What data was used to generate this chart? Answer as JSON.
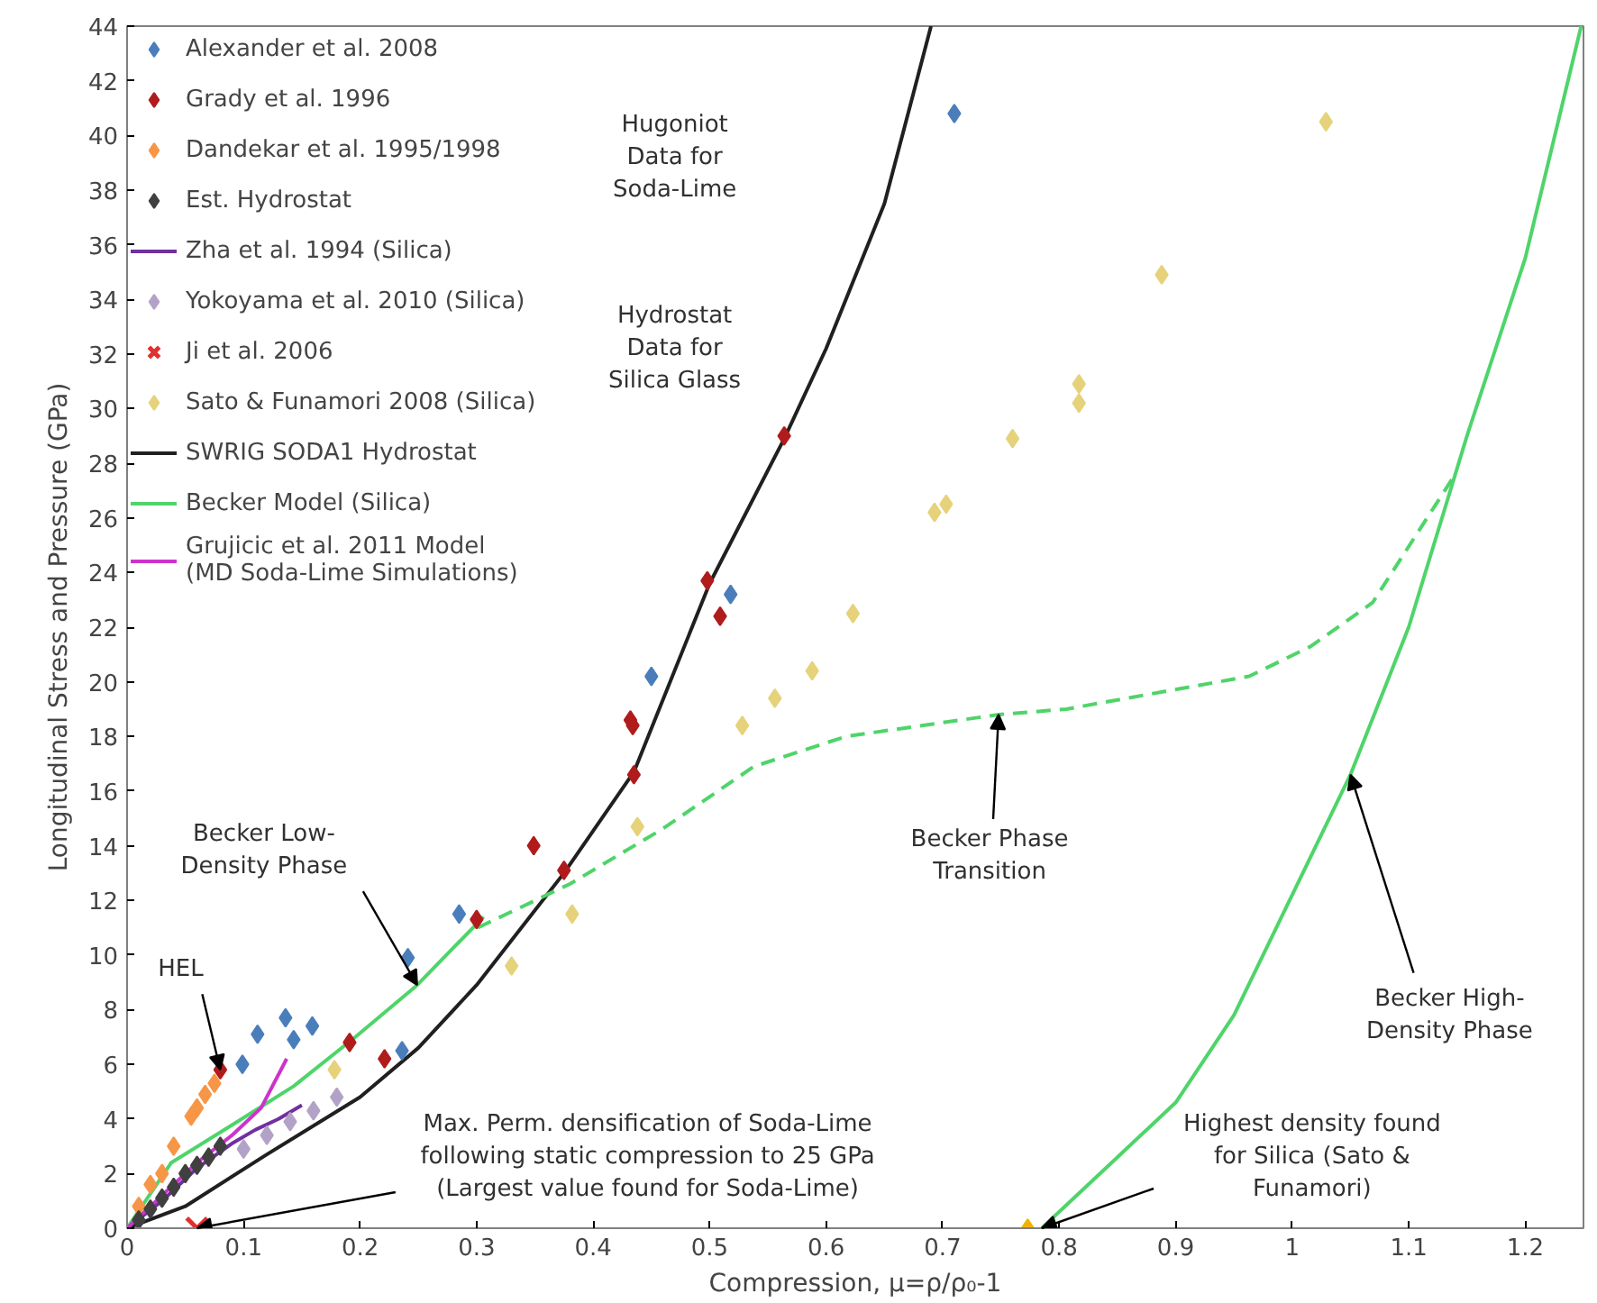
{
  "chart_data": {
    "type": "scatter",
    "xlabel": "Compression, μ=ρ/ρ₀-1",
    "ylabel": "Longitudinal Stress and Pressure (GPa)",
    "xlim": [
      0,
      1.25
    ],
    "xticks": [
      0,
      0.1,
      0.2,
      0.3,
      0.4,
      0.5,
      0.6,
      0.7,
      0.8,
      0.9,
      1,
      1.1,
      1.2
    ],
    "ylim": [
      0,
      44
    ],
    "yticks": [
      0,
      2,
      4,
      6,
      8,
      10,
      12,
      14,
      16,
      18,
      20,
      22,
      24,
      26,
      28,
      30,
      32,
      34,
      36,
      38,
      40,
      42,
      44
    ],
    "legend": "top left",
    "series": [
      {
        "name": "Alexander et al. 2008",
        "marker": "diamond",
        "color": "#4a7ebb",
        "x": [
          0.099,
          0.112,
          0.136,
          0.143,
          0.159,
          0.236,
          0.241,
          0.285,
          0.45,
          0.518,
          0.71
        ],
        "values": [
          6.0,
          7.1,
          7.7,
          6.9,
          7.4,
          6.5,
          9.9,
          11.5,
          20.2,
          23.2,
          40.8
        ]
      },
      {
        "name": "Grady et al. 1996",
        "marker": "diamond",
        "color": "#b01c1c",
        "x": [
          0.08,
          0.191,
          0.221,
          0.3,
          0.349,
          0.375,
          0.432,
          0.434,
          0.435,
          0.498,
          0.509,
          0.564
        ],
        "values": [
          5.8,
          6.8,
          6.2,
          11.3,
          14.0,
          13.1,
          18.6,
          18.4,
          16.6,
          23.7,
          22.4,
          29.0
        ]
      },
      {
        "name": "Dandekar et al. 1995/1998",
        "marker": "diamond",
        "color": "#f79646",
        "x": [
          0.01,
          0.02,
          0.03,
          0.04,
          0.055,
          0.06,
          0.067,
          0.075
        ],
        "values": [
          0.8,
          1.6,
          2.0,
          3.0,
          4.1,
          4.4,
          4.9,
          5.3
        ]
      },
      {
        "name": "Est. Hydrostat",
        "marker": "diamond",
        "color": "#404040",
        "x": [
          0.01,
          0.02,
          0.03,
          0.04,
          0.05,
          0.06,
          0.07,
          0.08
        ],
        "values": [
          0.3,
          0.7,
          1.1,
          1.5,
          2.0,
          2.3,
          2.6,
          3.0
        ]
      },
      {
        "name": "Zha et al. 1994 (Silica)",
        "type": "line",
        "color": "#7030a0",
        "x": [
          0,
          0.03,
          0.06,
          0.09,
          0.11,
          0.13,
          0.15
        ],
        "values": [
          0,
          1.0,
          2.2,
          3.1,
          3.6,
          4.0,
          4.5
        ]
      },
      {
        "name": "Yokoyama et al. 2010 (Silica)",
        "marker": "diamond",
        "color": "#b3a2c7",
        "x": [
          0.1,
          0.12,
          0.14,
          0.16,
          0.18
        ],
        "values": [
          2.9,
          3.4,
          3.9,
          4.3,
          4.8
        ]
      },
      {
        "name": "Ji et al. 2006",
        "marker": "cross",
        "color": "#e03030",
        "x": [
          0.06
        ],
        "values": [
          0
        ]
      },
      {
        "name": "Sato & Funamori 2008 (Silica)",
        "marker": "diamond",
        "color": "#e6d27a",
        "x": [
          0.178,
          0.33,
          0.382,
          0.438,
          0.528,
          0.556,
          0.588,
          0.623,
          0.693,
          0.703,
          0.76,
          0.817,
          0.817,
          0.888,
          1.029
        ],
        "values": [
          5.8,
          9.6,
          11.5,
          14.7,
          18.4,
          19.4,
          20.4,
          22.5,
          26.2,
          26.5,
          28.9,
          30.2,
          30.9,
          34.9,
          40.5
        ]
      },
      {
        "name": "SWRIG SODA1 Hydrostat",
        "type": "line",
        "color": "#202020",
        "x": [
          0,
          0.05,
          0.12,
          0.2,
          0.25,
          0.3,
          0.375,
          0.435,
          0.5,
          0.564,
          0.6,
          0.65,
          0.69
        ],
        "values": [
          0,
          0.8,
          2.7,
          4.8,
          6.6,
          8.9,
          13.0,
          16.7,
          23.6,
          28.9,
          32.2,
          37.5,
          44
        ]
      },
      {
        "name": "Becker Model (Silica)",
        "type": "line",
        "color": "#4fd46a",
        "x": [
          0,
          0.038,
          0.091,
          0.143,
          0.196,
          0.249,
          0.306
        ],
        "values": [
          0,
          2.4,
          3.8,
          5.2,
          7.0,
          8.9,
          11.4
        ]
      },
      {
        "name": "Grujicic et al. 2011 Model\n(MD Soda-Lime Simulations)",
        "type": "line",
        "color": "#cc33cc",
        "x": [
          0,
          0.03,
          0.06,
          0.09,
          0.115,
          0.137
        ],
        "values": [
          0,
          1.2,
          2.4,
          3.4,
          4.4,
          6.2
        ]
      },
      {
        "type": "line",
        "line_style": "dashed",
        "color": "#4fd46a",
        "x": [
          0.301,
          0.38,
          0.459,
          0.538,
          0.617,
          0.748,
          0.806,
          0.963,
          1.016,
          1.069,
          1.14
        ],
        "values": [
          11.0,
          12.6,
          14.6,
          16.9,
          18.0,
          18.8,
          19.0,
          20.2,
          21.3,
          22.9,
          27.6
        ]
      },
      {
        "type": "line",
        "color": "#4fd46a",
        "x": [
          0.785,
          0.85,
          0.9,
          0.95,
          1.0,
          1.05,
          1.1,
          1.15,
          1.2,
          1.248
        ],
        "values": [
          0,
          2.6,
          4.6,
          7.8,
          12.2,
          16.6,
          22.0,
          29.0,
          35.5,
          44
        ]
      },
      {
        "marker": "diamond",
        "color": "#f0b400",
        "x": [
          0.773
        ],
        "values": [
          0
        ]
      }
    ],
    "annotations": [
      {
        "text": "HEL",
        "x": 0.08,
        "y": 5.8
      },
      {
        "text": "Becker Low-\nDensity Phase",
        "x": 0.249,
        "y": 8.9
      },
      {
        "text": "Becker Phase\nTransition",
        "x": 0.748,
        "y": 18.8
      },
      {
        "text": "Becker High-\nDensity Phase",
        "x": 1.05,
        "y": 16.6
      },
      {
        "text": "Max. Perm. densification of Soda-Lime\nfollowing static compression to 25 GPa\n(Largest value found for Soda-Lime)",
        "x": 0.06,
        "y": 0
      },
      {
        "text": "Highest density found\nfor Silica (Sato &\nFunamori)",
        "x": 0.785,
        "y": 0
      },
      "Hugoniot\nData for\nSoda-Lime",
      "Hydrostat\nData for\nSilica Glass"
    ]
  }
}
